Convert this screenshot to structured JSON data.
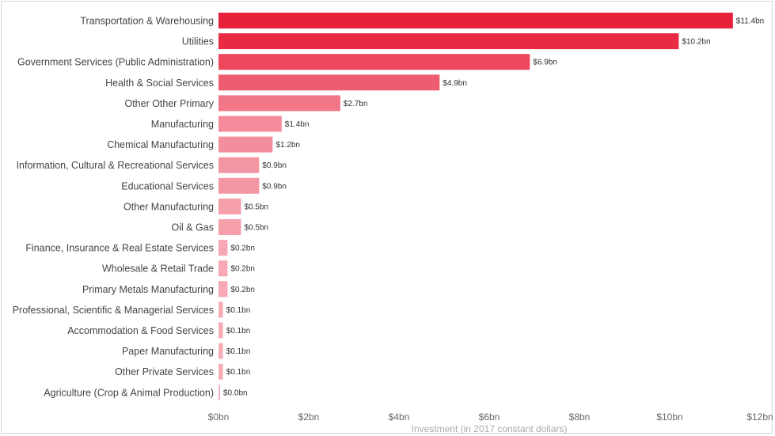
{
  "chart_data": {
    "type": "bar",
    "orientation": "horizontal",
    "title": "",
    "xlabel": "Investment (in 2017 constant dollars)",
    "ylabel": "",
    "xlim": [
      0,
      12
    ],
    "grid": false,
    "legend": "none",
    "color_scale": {
      "high": "#e8203a",
      "low": "#f7b6c0"
    },
    "categories": [
      "Transportation & Warehousing",
      "Utilities",
      "Government Services (Public Administration)",
      "Health & Social Services",
      "Other Other Primary",
      "Manufacturing",
      "Chemical Manufacturing",
      "Information, Cultural & Recreational Services",
      "Educational Services",
      "Other Manufacturing",
      "Oil & Gas",
      "Finance, Insurance & Real Estate Services",
      "Wholesale & Retail Trade",
      "Primary Metals Manufacturing",
      "Professional, Scientific & Managerial Services",
      "Accommodation & Food Services",
      "Paper Manufacturing",
      "Other Private Services",
      "Agriculture (Crop & Animal Production)"
    ],
    "values": [
      11.4,
      10.2,
      6.9,
      4.9,
      2.7,
      1.4,
      1.2,
      0.9,
      0.9,
      0.5,
      0.5,
      0.2,
      0.2,
      0.2,
      0.1,
      0.1,
      0.1,
      0.1,
      0.0
    ],
    "value_labels": [
      "$11.4bn",
      "$10.2bn",
      "$6.9bn",
      "$4.9bn",
      "$2.7bn",
      "$1.4bn",
      "$1.2bn",
      "$0.9bn",
      "$0.9bn",
      "$0.5bn",
      "$0.5bn",
      "$0.2bn",
      "$0.2bn",
      "$0.2bn",
      "$0.1bn",
      "$0.1bn",
      "$0.1bn",
      "$0.1bn",
      "$0.0bn"
    ],
    "ticks": [
      0,
      2,
      4,
      6,
      8,
      10,
      12
    ],
    "tick_labels": [
      "$0bn",
      "$2bn",
      "$4bn",
      "$6bn",
      "$8bn",
      "$10bn",
      "$12bn"
    ]
  }
}
